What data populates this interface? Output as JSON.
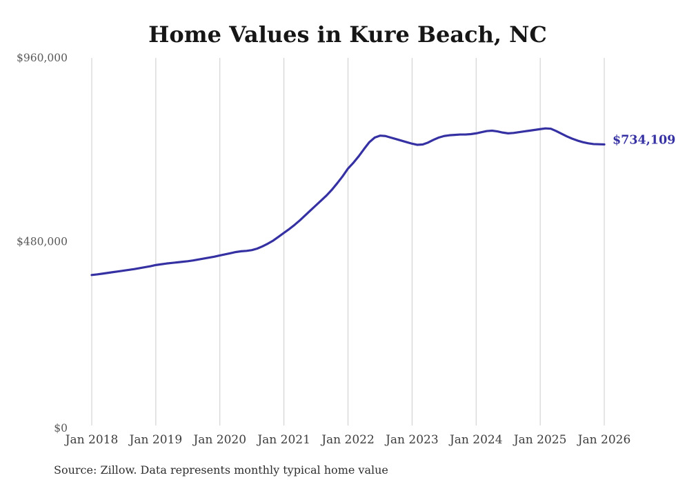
{
  "title": "Home Values in Kure Beach, NC",
  "source_note": "Source: Zillow. Data represents monthly typical home value",
  "colors": {
    "background": "#ffffff",
    "line": "#3531a3",
    "end_label": "#3531a3",
    "grid": "#cbcbcb",
    "title": "#161616",
    "y_tick": "#585858",
    "x_tick": "#3d3d3d",
    "source": "#2e2e2e"
  },
  "chart_data": {
    "type": "line",
    "title": "Home Values in Kure Beach, NC",
    "xlabel": "",
    "ylabel": "",
    "x_interval": "monthly",
    "x_range": [
      "Jan 2018",
      "Jan 2026"
    ],
    "x_tick_labels": [
      "Jan 2018",
      "Jan 2019",
      "Jan 2020",
      "Jan 2021",
      "Jan 2022",
      "Jan 2023",
      "Jan 2024",
      "Jan 2025",
      "Jan 2026"
    ],
    "y_ticks": [
      {
        "label": "$960,000",
        "value": 960000
      },
      {
        "label": "$480,000",
        "value": 480000
      },
      {
        "label": "$0",
        "value": 0
      }
    ],
    "ylim": [
      0,
      960000
    ],
    "grid": "vertical-only",
    "legend": "none",
    "last_point": {
      "label": "$734,109",
      "value": 734109,
      "x": "Jan 2026"
    },
    "series": [
      {
        "name": "Typical home value",
        "values": [
          393000,
          394500,
          396500,
          398500,
          400500,
          402500,
          404500,
          406500,
          408500,
          411000,
          413500,
          416000,
          419000,
          421000,
          423000,
          424500,
          426000,
          427500,
          429000,
          431000,
          433500,
          436000,
          438500,
          441000,
          444000,
          447000,
          450000,
          453000,
          455000,
          456000,
          458000,
          462000,
          468000,
          475000,
          483000,
          493000,
          503000,
          513000,
          524000,
          536000,
          549000,
          562000,
          575000,
          588000,
          601000,
          616000,
          633000,
          651000,
          671000,
          686000,
          703000,
          722000,
          740000,
          752000,
          757000,
          756000,
          752000,
          748000,
          744000,
          740000,
          736000,
          733000,
          734000,
          739000,
          746000,
          752000,
          756000,
          758000,
          759000,
          760000,
          760000,
          761000,
          763000,
          766000,
          769000,
          770000,
          768000,
          765000,
          763000,
          764000,
          766000,
          768000,
          770000,
          772000,
          774000,
          776000,
          775000,
          769000,
          762000,
          755000,
          749000,
          744000,
          740000,
          737000,
          735000,
          734500,
          734109
        ]
      }
    ]
  }
}
